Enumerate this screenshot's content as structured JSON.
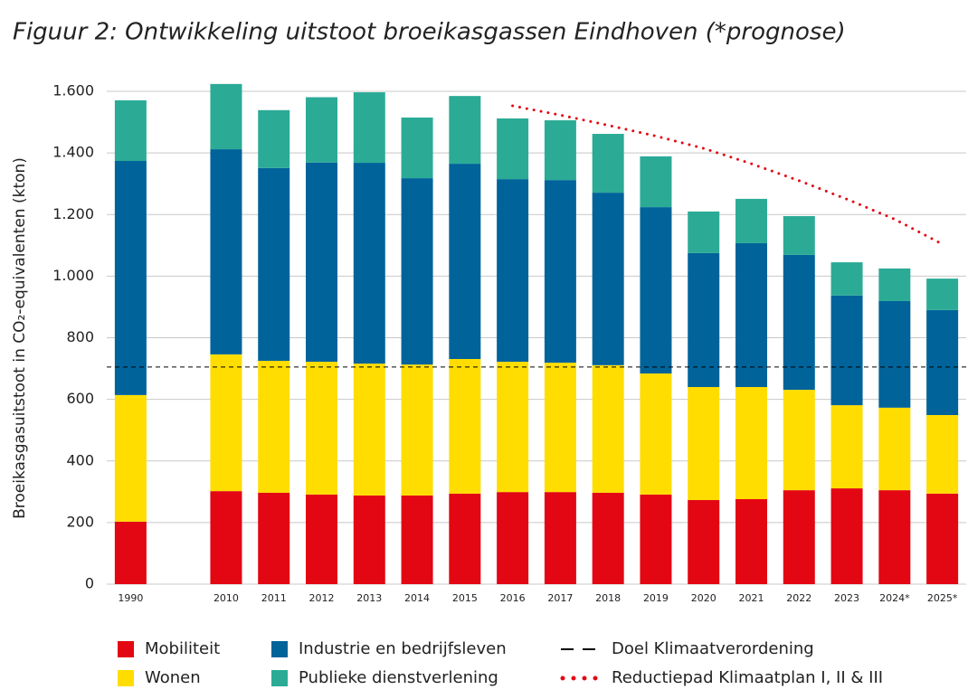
{
  "chart_data": {
    "type": "stacked_bar",
    "title": "Figuur 2: Ontwikkeling uitstoot broeikasgassen Eindhoven (*prognose)",
    "y_label": "Broeikasgasuitstoot in CO₂-equivalenten (kton)",
    "categories": [
      "1990",
      null,
      "2010",
      "2011",
      "2012",
      "2013",
      "2014",
      "2015",
      "2016",
      "2017",
      "2018",
      "2019",
      "2020",
      "2021",
      "2022",
      "2023",
      "2024*",
      "2025*"
    ],
    "series": [
      {
        "name": "Mobiliteit",
        "color": "#e30613",
        "values": [
          203,
          null,
          302,
          297,
          291,
          288,
          288,
          294,
          299,
          299,
          297,
          291,
          273,
          276,
          305,
          311,
          305,
          294
        ]
      },
      {
        "name": "Wonen",
        "color": "#ffdd00",
        "values": [
          411,
          null,
          444,
          428,
          431,
          428,
          425,
          437,
          423,
          420,
          414,
          393,
          367,
          364,
          326,
          270,
          268,
          255
        ]
      },
      {
        "name": "Industrie en bedrijfsleven",
        "color": "#00639a",
        "values": [
          760,
          null,
          666,
          626,
          647,
          652,
          605,
          634,
          593,
          593,
          560,
          540,
          435,
          467,
          438,
          356,
          346,
          341
        ]
      },
      {
        "name": "Publieke dienstverlening",
        "color": "#2bab96",
        "values": [
          197,
          null,
          212,
          188,
          212,
          229,
          197,
          220,
          197,
          194,
          191,
          165,
          135,
          144,
          126,
          108,
          106,
          102
        ]
      }
    ],
    "reference_line": {
      "name": "Doel Klimaatverordening",
      "value": 705,
      "color": "#000000",
      "style": "dashed"
    },
    "line_series": {
      "name": "Reductiepad Klimaatplan I, II & III",
      "color": "#e30613",
      "style": "dotted",
      "values": [
        null,
        null,
        null,
        null,
        null,
        null,
        null,
        null,
        1553,
        1523,
        1490,
        1455,
        1415,
        1365,
        1310,
        1250,
        1185,
        1104
      ]
    },
    "ylim": [
      0,
      1650
    ],
    "yticks": [
      0,
      200,
      400,
      600,
      800,
      {
        "value": 1000,
        "label": "1.000"
      },
      {
        "value": 1200,
        "label": "1.200"
      },
      {
        "value": 1400,
        "label": "1.400"
      },
      {
        "value": 1600,
        "label": "1.600"
      }
    ],
    "grid": true,
    "legend": "bottom"
  }
}
